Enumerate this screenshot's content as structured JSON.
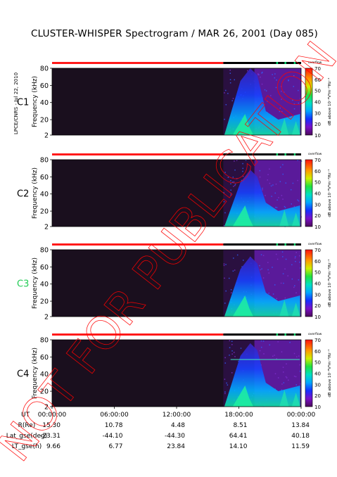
{
  "page": {
    "title": "CLUSTER-WHISPER Spectrogram / MAR 26, 2001 (Day 085)",
    "side_note": "LPCE/CNRS - Jul 22, 2010",
    "watermark": "NOT FOR PUBLICATION"
  },
  "colors": {
    "background": "#1a0f1e",
    "mode_bar_red": "#ff1a1a",
    "mode_bar_black": "#000000",
    "mode_bar_green": "#00cc66",
    "watermark": "#ff0000",
    "c3_label": "#22cc55"
  },
  "chart_data": {
    "type": "heatmap",
    "panels": [
      {
        "label": "C1",
        "label_color": "#000000",
        "line_level": null,
        "band_level": 1.0
      },
      {
        "label": "C2",
        "label_color": "#000000",
        "line_level": null,
        "band_level": 0.85
      },
      {
        "label": "C3",
        "label_color": "#22cc55",
        "line_level": null,
        "band_level": 0.9
      },
      {
        "label": "C4",
        "label_color": "#000000",
        "line_level": 57,
        "band_level": 0.95
      }
    ],
    "ylabel": "Frequency (kHz)",
    "yticks": [
      "2",
      "20",
      "40",
      "60",
      "80"
    ],
    "ylim": [
      2,
      80
    ],
    "colorbar": {
      "label": "dB above 10⁻⁸V²m⁻²Hz⁻¹",
      "ticks": [
        "10",
        "20",
        "30",
        "40",
        "50",
        "60",
        "70"
      ],
      "range": [
        10,
        70
      ],
      "header": "overflow"
    },
    "mode_bar": {
      "red_until_hours": 16.5,
      "green_ticks_hours": [
        21.6,
        22.4,
        23.3
      ]
    },
    "xlim_hours": [
      0,
      24
    ],
    "data_start_hours": 16.5,
    "ephemeris": {
      "row_labels": [
        "UT",
        "R(Re)",
        "Lat_gse(deg)",
        "LT_gse(h)"
      ],
      "columns": [
        {
          "ut": "00:00:00",
          "r": "15.30",
          "lat": "-23.31",
          "lt": "9.66"
        },
        {
          "ut": "06:00:00",
          "r": "10.78",
          "lat": "-44.10",
          "lt": "6.77"
        },
        {
          "ut": "12:00:00",
          "r": "4.48",
          "lat": "-44.30",
          "lt": "23.84"
        },
        {
          "ut": "18:00:00",
          "r": "8.51",
          "lat": "64.41",
          "lt": "14.10"
        },
        {
          "ut": "00:00:00",
          "r": "13.84",
          "lat": "40.18",
          "lt": "11.59"
        }
      ]
    }
  }
}
